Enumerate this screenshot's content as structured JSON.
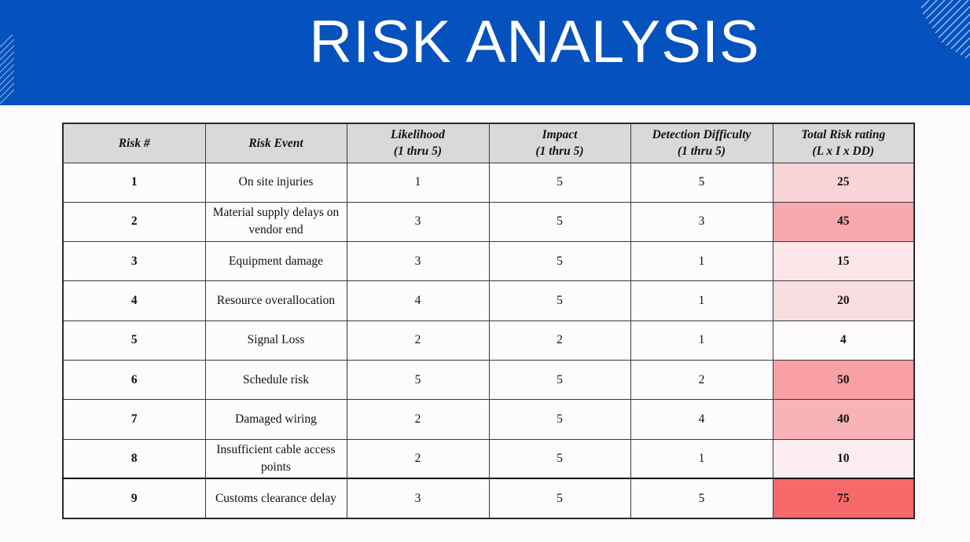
{
  "title": "RISK ANALYSIS",
  "colors": {
    "banner": "#0551bd",
    "header_bg": "#d9d9d9"
  },
  "table": {
    "headers": [
      {
        "line1": "Risk #",
        "line2": ""
      },
      {
        "line1": "Risk Event",
        "line2": ""
      },
      {
        "line1": "Likelihood",
        "line2": "(1 thru 5)"
      },
      {
        "line1": "Impact",
        "line2": "(1 thru 5)"
      },
      {
        "line1": "Detection Difficulty",
        "line2": "(1 thru 5)"
      },
      {
        "line1": "Total Risk rating",
        "line2": "(L x I x DD)"
      }
    ],
    "rows": [
      {
        "num": "1",
        "event": "On site injuries",
        "likelihood": "1",
        "impact": "5",
        "detection": "5",
        "total": "25",
        "color": "#f9d3d6"
      },
      {
        "num": "2",
        "event": "Material supply delays on vendor end",
        "likelihood": "3",
        "impact": "5",
        "detection": "3",
        "total": "45",
        "color": "#f8a9ad"
      },
      {
        "num": "3",
        "event": "Equipment damage",
        "likelihood": "3",
        "impact": "5",
        "detection": "1",
        "total": "15",
        "color": "#fce6e9"
      },
      {
        "num": "4",
        "event": "Resource overallocation",
        "likelihood": "4",
        "impact": "5",
        "detection": "1",
        "total": "20",
        "color": "#fadde0"
      },
      {
        "num": "5",
        "event": "Signal Loss",
        "likelihood": "2",
        "impact": "2",
        "detection": "1",
        "total": "4",
        "color": "#fdfbfd"
      },
      {
        "num": "6",
        "event": "Schedule risk",
        "likelihood": "5",
        "impact": "5",
        "detection": "2",
        "total": "50",
        "color": "#f8a0a4"
      },
      {
        "num": "7",
        "event": "Damaged wiring",
        "likelihood": "2",
        "impact": "5",
        "detection": "4",
        "total": "40",
        "color": "#f9b3b7"
      },
      {
        "num": "8",
        "event": "Insufficient cable access points",
        "likelihood": "2",
        "impact": "5",
        "detection": "1",
        "total": "10",
        "color": "#fcedf0"
      },
      {
        "num": "9",
        "event": "Customs clearance delay",
        "likelihood": "3",
        "impact": "5",
        "detection": "5",
        "total": "75",
        "color": "#f7696b"
      }
    ]
  }
}
